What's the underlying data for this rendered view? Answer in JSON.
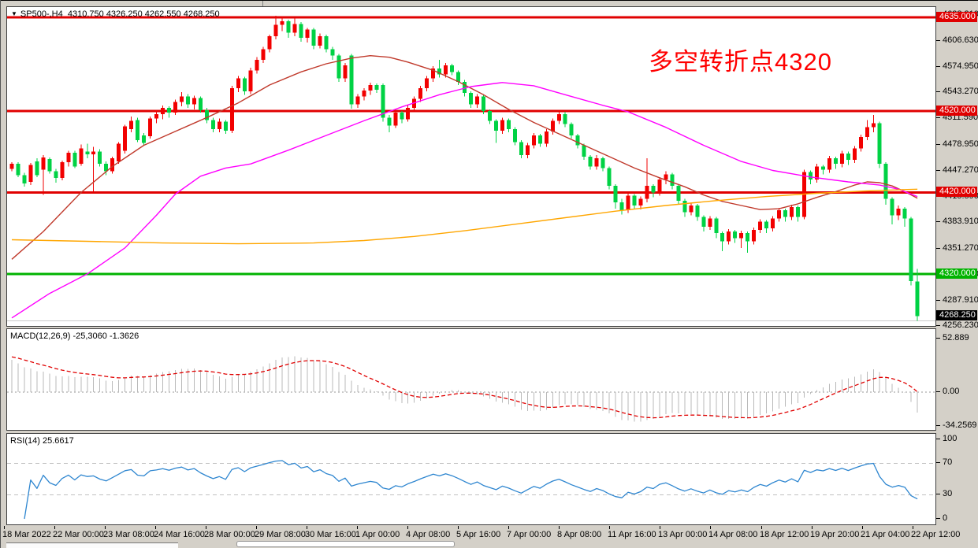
{
  "window": {
    "background": "#d4d0c8",
    "panel_background": "#ffffff"
  },
  "header": {
    "symbol_period": "SP500-,H4",
    "open": "4310.750",
    "high": "4326.250",
    "low": "4262.550",
    "close": "4268.250"
  },
  "annotation": {
    "text": "多空转折点4320",
    "color": "#ff0000"
  },
  "colors": {
    "up_candle": "#f20000",
    "down_candle": "#00d244",
    "level_red": "#e00000",
    "level_green": "#00b300",
    "ma_medium": "#c0392b",
    "ma_slow": "#ff00ff",
    "ma_long": "#ffa600",
    "macd_hist": "#b9b9b9",
    "macd_signal": "#e00000",
    "rsi_line": "#2e86d0",
    "rsi_level_dash": "#c0c0c0",
    "ask_line": "#c9c9c9"
  },
  "chart_data": {
    "type": "candlestick",
    "symbol": "SP500-",
    "timeframe": "H4",
    "title": "SP500- H4 candlestick chart with MACD and RSI",
    "ylim": [
      4256,
      4648
    ],
    "y_axis_ticks": [
      "4638.310",
      "4606.630",
      "4574.950",
      "4543.270",
      "4511.590",
      "4478.950",
      "4447.270",
      "4415.590",
      "4383.910",
      "4351.270",
      "4319.590",
      "4287.910",
      "4256.230"
    ],
    "x_tick_labels": [
      "18 Mar 2022",
      "22 Mar 00:00",
      "23 Mar 08:00",
      "24 Mar 16:00",
      "28 Mar 00:00",
      "29 Mar 08:00",
      "30 Mar 16:00",
      "1 Apr 00:00",
      "4 Apr 08:00",
      "5 Apr 16:00",
      "7 Apr 00:00",
      "8 Apr 08:00",
      "11 Apr 16:00",
      "13 Apr 00:00",
      "14 Apr 08:00",
      "18 Apr 12:00",
      "19 Apr 20:00",
      "21 Apr 04:00",
      "22 Apr 12:00"
    ],
    "x_tick_every": 8,
    "level_lines": [
      {
        "price": 4635.0,
        "label": "4635.000",
        "color": "#e00000"
      },
      {
        "price": 4520.0,
        "label": "4520.000",
        "color": "#e00000"
      },
      {
        "price": 4420.0,
        "label": "4420.000",
        "color": "#e00000"
      },
      {
        "price": 4320.0,
        "label": "4320.000",
        "color": "#00b300"
      }
    ],
    "current_price": {
      "value": 4268.25,
      "label": "4268.250",
      "badge_color": "#000000"
    },
    "ask_line_price": 4262.2,
    "ohlc": [
      [
        4449,
        4457,
        4446,
        4455
      ],
      [
        4455,
        4457,
        4439,
        4441
      ],
      [
        4441,
        4444,
        4427,
        4431
      ],
      [
        4433,
        4456,
        4429,
        4454
      ],
      [
        4458,
        4462,
        4439,
        4441
      ],
      [
        4448,
        4466,
        4417,
        4463
      ],
      [
        4461,
        4463,
        4443,
        4446
      ],
      [
        4446,
        4449,
        4432,
        4438
      ],
      [
        4438,
        4459,
        4435,
        4457
      ],
      [
        4457,
        4471,
        4452,
        4469
      ],
      [
        4469,
        4471,
        4450,
        4452
      ],
      [
        4455,
        4479,
        4453,
        4474
      ],
      [
        4470,
        4480,
        4462,
        4467
      ],
      [
        4467,
        4476,
        4421,
        4470
      ],
      [
        4470,
        4473,
        4452,
        4455
      ],
      [
        4455,
        4458,
        4441,
        4446
      ],
      [
        4446,
        4464,
        4443,
        4462
      ],
      [
        4458,
        4482,
        4455,
        4480
      ],
      [
        4471,
        4503,
        4468,
        4501
      ],
      [
        4498,
        4513,
        4494,
        4508
      ],
      [
        4509,
        4512,
        4482,
        4484
      ],
      [
        4490,
        4493,
        4478,
        4481
      ],
      [
        4489,
        4513,
        4486,
        4511
      ],
      [
        4511,
        4521,
        4505,
        4516
      ],
      [
        4516,
        4527,
        4510,
        4524
      ],
      [
        4524,
        4526,
        4512,
        4518
      ],
      [
        4518,
        4534,
        4515,
        4531
      ],
      [
        4531,
        4543,
        4526,
        4538
      ],
      [
        4538,
        4541,
        4524,
        4528
      ],
      [
        4528,
        4539,
        4522,
        4536
      ],
      [
        4536,
        4538,
        4518,
        4521
      ],
      [
        4521,
        4524,
        4505,
        4509
      ],
      [
        4509,
        4512,
        4494,
        4498
      ],
      [
        4498,
        4511,
        4494,
        4507
      ],
      [
        4507,
        4509,
        4492,
        4496
      ],
      [
        4496,
        4551,
        4493,
        4548
      ],
      [
        4548,
        4563,
        4543,
        4560
      ],
      [
        4560,
        4562,
        4540,
        4544
      ],
      [
        4544,
        4573,
        4541,
        4570
      ],
      [
        4570,
        4586,
        4566,
        4583
      ],
      [
        4583,
        4599,
        4579,
        4596
      ],
      [
        4596,
        4614,
        4592,
        4612
      ],
      [
        4612,
        4637,
        4608,
        4626
      ],
      [
        4626,
        4636,
        4618,
        4630
      ],
      [
        4630,
        4632,
        4610,
        4616
      ],
      [
        4616,
        4634,
        4612,
        4627
      ],
      [
        4627,
        4629,
        4605,
        4610
      ],
      [
        4610,
        4622,
        4604,
        4620
      ],
      [
        4620,
        4622,
        4596,
        4600
      ],
      [
        4600,
        4615,
        4597,
        4612
      ],
      [
        4612,
        4614,
        4592,
        4596
      ],
      [
        4596,
        4599,
        4583,
        4588
      ],
      [
        4588,
        4590,
        4556,
        4560
      ],
      [
        4560,
        4579,
        4556,
        4576
      ],
      [
        4588,
        4590,
        4523,
        4528
      ],
      [
        4528,
        4541,
        4524,
        4538
      ],
      [
        4538,
        4548,
        4533,
        4545
      ],
      [
        4545,
        4555,
        4540,
        4552
      ],
      [
        4552,
        4554,
        4542,
        4546
      ],
      [
        4552,
        4554,
        4507,
        4512
      ],
      [
        4512,
        4515,
        4494,
        4502
      ],
      [
        4502,
        4521,
        4499,
        4518
      ],
      [
        4518,
        4520,
        4505,
        4510
      ],
      [
        4510,
        4527,
        4507,
        4524
      ],
      [
        4524,
        4538,
        4520,
        4535
      ],
      [
        4535,
        4551,
        4531,
        4548
      ],
      [
        4548,
        4563,
        4544,
        4560
      ],
      [
        4560,
        4575,
        4556,
        4572
      ],
      [
        4572,
        4583,
        4561,
        4565
      ],
      [
        4565,
        4579,
        4561,
        4576
      ],
      [
        4576,
        4578,
        4564,
        4568
      ],
      [
        4568,
        4570,
        4552,
        4556
      ],
      [
        4556,
        4558,
        4538,
        4542
      ],
      [
        4542,
        4544,
        4524,
        4528
      ],
      [
        4528,
        4541,
        4524,
        4538
      ],
      [
        4538,
        4540,
        4516,
        4520
      ],
      [
        4520,
        4522,
        4504,
        4508
      ],
      [
        4508,
        4510,
        4481,
        4496
      ],
      [
        4496,
        4512,
        4492,
        4509
      ],
      [
        4509,
        4511,
        4494,
        4498
      ],
      [
        4498,
        4500,
        4478,
        4482
      ],
      [
        4482,
        4484,
        4462,
        4466
      ],
      [
        4466,
        4481,
        4462,
        4478
      ],
      [
        4478,
        4493,
        4474,
        4490
      ],
      [
        4490,
        4492,
        4476,
        4480
      ],
      [
        4480,
        4498,
        4476,
        4495
      ],
      [
        4495,
        4511,
        4491,
        4508
      ],
      [
        4508,
        4521,
        4504,
        4516
      ],
      [
        4516,
        4519,
        4500,
        4504
      ],
      [
        4504,
        4506,
        4486,
        4490
      ],
      [
        4490,
        4492,
        4474,
        4478
      ],
      [
        4478,
        4480,
        4460,
        4464
      ],
      [
        4464,
        4466,
        4448,
        4452
      ],
      [
        4452,
        4466,
        4448,
        4462
      ],
      [
        4462,
        4464,
        4446,
        4450
      ],
      [
        4450,
        4452,
        4424,
        4428
      ],
      [
        4428,
        4430,
        4400,
        4408
      ],
      [
        4408,
        4412,
        4393,
        4398
      ],
      [
        4398,
        4419,
        4395,
        4416
      ],
      [
        4416,
        4418,
        4400,
        4404
      ],
      [
        4404,
        4415,
        4399,
        4412
      ],
      [
        4412,
        4462,
        4408,
        4428
      ],
      [
        4428,
        4430,
        4414,
        4420
      ],
      [
        4420,
        4439,
        4416,
        4436
      ],
      [
        4436,
        4446,
        4430,
        4442
      ],
      [
        4442,
        4444,
        4424,
        4428
      ],
      [
        4428,
        4430,
        4406,
        4410
      ],
      [
        4410,
        4412,
        4390,
        4396
      ],
      [
        4396,
        4407,
        4392,
        4404
      ],
      [
        4404,
        4406,
        4385,
        4390
      ],
      [
        4390,
        4392,
        4372,
        4378
      ],
      [
        4378,
        4391,
        4374,
        4388
      ],
      [
        4388,
        4390,
        4364,
        4370
      ],
      [
        4370,
        4372,
        4348,
        4360
      ],
      [
        4360,
        4375,
        4356,
        4372
      ],
      [
        4372,
        4374,
        4358,
        4364
      ],
      [
        4364,
        4373,
        4352,
        4370
      ],
      [
        4370,
        4372,
        4346,
        4360
      ],
      [
        4360,
        4377,
        4356,
        4374
      ],
      [
        4374,
        4387,
        4370,
        4384
      ],
      [
        4384,
        4386,
        4370,
        4376
      ],
      [
        4376,
        4391,
        4372,
        4388
      ],
      [
        4388,
        4401,
        4384,
        4398
      ],
      [
        4398,
        4400,
        4384,
        4390
      ],
      [
        4390,
        4405,
        4386,
        4402
      ],
      [
        4402,
        4404,
        4384,
        4390
      ],
      [
        4390,
        4448,
        4387,
        4445
      ],
      [
        4445,
        4447,
        4430,
        4436
      ],
      [
        4436,
        4455,
        4432,
        4452
      ],
      [
        4452,
        4454,
        4442,
        4448
      ],
      [
        4448,
        4465,
        4444,
        4462
      ],
      [
        4462,
        4464,
        4449,
        4455
      ],
      [
        4455,
        4471,
        4451,
        4468
      ],
      [
        4468,
        4470,
        4454,
        4460
      ],
      [
        4460,
        4477,
        4456,
        4474
      ],
      [
        4474,
        4491,
        4470,
        4488
      ],
      [
        4488,
        4509,
        4484,
        4500
      ],
      [
        4500,
        4515,
        4494,
        4505
      ],
      [
        4505,
        4507,
        4450,
        4455
      ],
      [
        4455,
        4457,
        4405,
        4412
      ],
      [
        4412,
        4414,
        4381,
        4392
      ],
      [
        4392,
        4404,
        4386,
        4400
      ],
      [
        4400,
        4402,
        4378,
        4388
      ],
      [
        4388,
        4390,
        4306,
        4311
      ],
      [
        4310.75,
        4326.25,
        4262.55,
        4268.25
      ]
    ],
    "moving_averages": [
      {
        "name": "ma-medium-darkred",
        "color": "#c0392b",
        "points": [
          [
            0,
            4338
          ],
          [
            5,
            4372
          ],
          [
            11,
            4420
          ],
          [
            16,
            4452
          ],
          [
            21,
            4478
          ],
          [
            26,
            4495
          ],
          [
            31,
            4512
          ],
          [
            36,
            4530
          ],
          [
            41,
            4552
          ],
          [
            46,
            4568
          ],
          [
            50,
            4578
          ],
          [
            54,
            4585
          ],
          [
            57,
            4588
          ],
          [
            60,
            4586
          ],
          [
            63,
            4580
          ],
          [
            67,
            4570
          ],
          [
            71,
            4556
          ],
          [
            75,
            4540
          ],
          [
            79,
            4522
          ],
          [
            83,
            4506
          ],
          [
            87,
            4492
          ],
          [
            91,
            4478
          ],
          [
            95,
            4464
          ],
          [
            99,
            4450
          ],
          [
            103,
            4438
          ],
          [
            107,
            4427
          ],
          [
            110,
            4417
          ],
          [
            113,
            4409
          ],
          [
            116,
            4404
          ],
          [
            119,
            4399
          ],
          [
            122,
            4400
          ],
          [
            125,
            4406
          ],
          [
            128,
            4414
          ],
          [
            131,
            4421
          ],
          [
            134,
            4429
          ],
          [
            136,
            4433
          ],
          [
            138,
            4432
          ],
          [
            140,
            4428
          ],
          [
            142,
            4421
          ],
          [
            144,
            4413
          ]
        ]
      },
      {
        "name": "ma-slow-magenta",
        "color": "#ff00ff",
        "points": [
          [
            0,
            4266
          ],
          [
            6,
            4296
          ],
          [
            12,
            4320
          ],
          [
            18,
            4352
          ],
          [
            23,
            4392
          ],
          [
            26,
            4418
          ],
          [
            30,
            4440
          ],
          [
            34,
            4450
          ],
          [
            38,
            4455
          ],
          [
            44,
            4472
          ],
          [
            50,
            4490
          ],
          [
            56,
            4508
          ],
          [
            62,
            4525
          ],
          [
            68,
            4540
          ],
          [
            73,
            4550
          ],
          [
            78,
            4555
          ],
          [
            83,
            4551
          ],
          [
            88,
            4540
          ],
          [
            94,
            4527
          ],
          [
            98,
            4519
          ],
          [
            104,
            4500
          ],
          [
            110,
            4478
          ],
          [
            116,
            4458
          ],
          [
            121,
            4447
          ],
          [
            127,
            4439
          ],
          [
            133,
            4433
          ],
          [
            138,
            4429
          ],
          [
            141,
            4424
          ],
          [
            144,
            4415
          ]
        ]
      },
      {
        "name": "ma-long-orange",
        "color": "#ffa600",
        "points": [
          [
            0,
            4362
          ],
          [
            12,
            4360
          ],
          [
            24,
            4358
          ],
          [
            36,
            4357
          ],
          [
            48,
            4358
          ],
          [
            56,
            4361
          ],
          [
            64,
            4366
          ],
          [
            72,
            4373
          ],
          [
            80,
            4381
          ],
          [
            88,
            4389
          ],
          [
            96,
            4397
          ],
          [
            104,
            4404
          ],
          [
            112,
            4410
          ],
          [
            120,
            4415
          ],
          [
            128,
            4419
          ],
          [
            136,
            4422
          ],
          [
            144,
            4424
          ]
        ]
      }
    ],
    "macd": {
      "label": "MACD(12,26,9) -25,3060 -1.3626",
      "fast": 12,
      "slow": 26,
      "signal": 9,
      "value": "-25,3060",
      "signal_value": "-1.3626",
      "y_ticks": [
        {
          "text": "52.889",
          "value": 52.889
        },
        {
          "text": "0.00",
          "value": 0
        },
        {
          "text": "-34.2569",
          "value": -34.2569
        }
      ]
    },
    "rsi": {
      "label": "RSI(14) 25.6617",
      "period": 14,
      "value": "25.6617",
      "levels": [
        70,
        30
      ],
      "y_ticks": [
        {
          "text": "100",
          "value": 100
        },
        {
          "text": "70",
          "value": 70
        },
        {
          "text": "30",
          "value": 30
        },
        {
          "text": "0",
          "value": 0
        }
      ]
    }
  }
}
